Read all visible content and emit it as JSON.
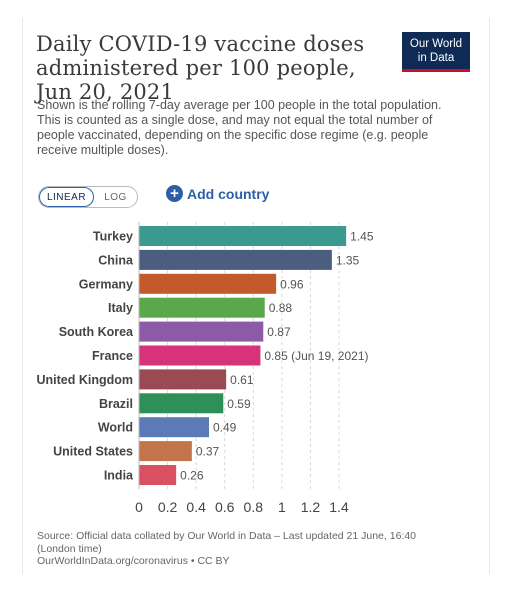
{
  "header": {
    "title": "Daily COVID-19 vaccine doses administered per 100 people, Jun 20, 2021",
    "subtitle": "Shown is the rolling 7-day average per 100 people in the total population. This is counted as a single dose, and may not equal the total number of people vaccinated, depending on the specific dose regime (e.g. people receive multiple doses).",
    "logo_line1": "Our World",
    "logo_line2": "in Data"
  },
  "controls": {
    "linear_label": "LINEAR",
    "log_label": "LOG",
    "add_country_label": "Add country",
    "add_icon": "plus-circle-icon"
  },
  "chart_data": {
    "type": "bar",
    "orientation": "horizontal",
    "categories": [
      "Turkey",
      "China",
      "Germany",
      "Italy",
      "South Korea",
      "France",
      "United Kingdom",
      "Brazil",
      "World",
      "United States",
      "India"
    ],
    "values": [
      1.45,
      1.35,
      0.96,
      0.88,
      0.87,
      0.85,
      0.61,
      0.59,
      0.49,
      0.37,
      0.26
    ],
    "labels": [
      "1.45",
      "1.35",
      "0.96",
      "0.88",
      "0.87",
      "0.85 (Jun 19, 2021)",
      "0.61",
      "0.59",
      "0.49",
      "0.37",
      "0.26"
    ],
    "colors": [
      "#3b9a8f",
      "#4b5e80",
      "#c25a2c",
      "#5aa84a",
      "#8d5aa8",
      "#d6337a",
      "#9a4a52",
      "#2e8f57",
      "#5c7ab8",
      "#c2744b",
      "#d95060"
    ],
    "xlim": [
      0,
      1.45
    ],
    "xticks": [
      "0",
      "0.2",
      "0.4",
      "0.6",
      "0.8",
      "1",
      "1.2",
      "1.4"
    ],
    "grid": true
  },
  "footer": {
    "source": "Source: Official data collated by Our World in Data – Last updated 21 June, 16:40 (London time)",
    "url_line": "OurWorldInData.org/coronavirus • CC BY"
  }
}
